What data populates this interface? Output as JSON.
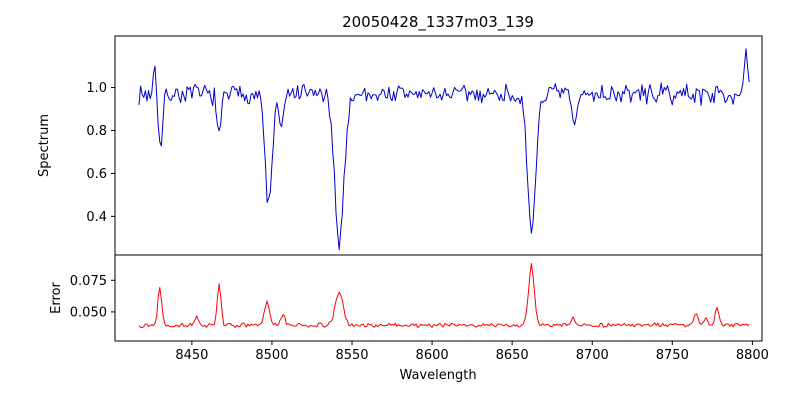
{
  "figure": {
    "title": "20050428_1337m03_139",
    "xlabel": "Wavelength",
    "background": "#ffffff",
    "border_color": "#000000"
  },
  "chart_data": [
    {
      "type": "line",
      "name": "spectrum",
      "title": "20050428_1337m03_139",
      "xlabel": "Wavelength",
      "ylabel": "Spectrum",
      "color": "#0000cc",
      "x_range": [
        8402,
        8806
      ],
      "x_data_range": [
        8417,
        8798
      ],
      "y_range": [
        0.22,
        1.24
      ],
      "x_ticks": [
        8450,
        8500,
        8550,
        8600,
        8650,
        8700,
        8750,
        8800
      ],
      "y_ticks": [
        0.4,
        0.6,
        0.8,
        1.0
      ],
      "y_tick_labels": [
        "0.4",
        "0.6",
        "0.8",
        "1.0"
      ],
      "baseline": 0.97,
      "noise_amp": 0.055,
      "noise_seed": 7,
      "step": 1,
      "grid": false,
      "legend": null,
      "features": [
        {
          "center": 8427,
          "amp": 0.13,
          "sigma": 1.0
        },
        {
          "center": 8430.5,
          "amp": -0.26,
          "sigma": 1.3
        },
        {
          "center": 8467,
          "amp": -0.21,
          "sigma": 1.3
        },
        {
          "center": 8498,
          "amp": -0.52,
          "sigma": 2.2
        },
        {
          "center": 8506,
          "amp": -0.16,
          "sigma": 1.5
        },
        {
          "center": 8542,
          "amp": -0.68,
          "sigma": 3.0
        },
        {
          "center": 8662,
          "amp": -0.65,
          "sigma": 2.6
        },
        {
          "center": 8689,
          "amp": -0.16,
          "sigma": 1.5
        },
        {
          "center": 8796,
          "amp": 0.17,
          "sigma": 1.2
        }
      ]
    },
    {
      "type": "line",
      "name": "error",
      "xlabel": "Wavelength",
      "ylabel": "Error",
      "color": "#ff0000",
      "x_range": [
        8402,
        8806
      ],
      "x_data_range": [
        8417,
        8798
      ],
      "y_range": [
        0.027,
        0.095
      ],
      "x_ticks": [
        8450,
        8500,
        8550,
        8600,
        8650,
        8700,
        8750,
        8800
      ],
      "x_tick_labels": [
        "8450",
        "8500",
        "8550",
        "8600",
        "8650",
        "8700",
        "8750",
        "8800"
      ],
      "y_ticks": [
        0.05,
        0.075
      ],
      "y_tick_labels": [
        "0.050",
        "0.075"
      ],
      "baseline": 0.0395,
      "noise_amp": 0.002,
      "noise_seed": 13,
      "step": 1,
      "grid": false,
      "legend": null,
      "features": [
        {
          "center": 8430,
          "amp": 0.031,
          "sigma": 1.2
        },
        {
          "center": 8453,
          "amp": 0.006,
          "sigma": 1.0
        },
        {
          "center": 8467,
          "amp": 0.032,
          "sigma": 1.2
        },
        {
          "center": 8497,
          "amp": 0.018,
          "sigma": 1.6
        },
        {
          "center": 8507,
          "amp": 0.009,
          "sigma": 1.2
        },
        {
          "center": 8542,
          "amp": 0.026,
          "sigma": 2.4
        },
        {
          "center": 8662,
          "amp": 0.047,
          "sigma": 1.8
        },
        {
          "center": 8688,
          "amp": 0.006,
          "sigma": 1.3
        },
        {
          "center": 8765,
          "amp": 0.01,
          "sigma": 1.2
        },
        {
          "center": 8771,
          "amp": 0.007,
          "sigma": 1.0
        },
        {
          "center": 8778,
          "amp": 0.014,
          "sigma": 1.2
        }
      ]
    }
  ]
}
